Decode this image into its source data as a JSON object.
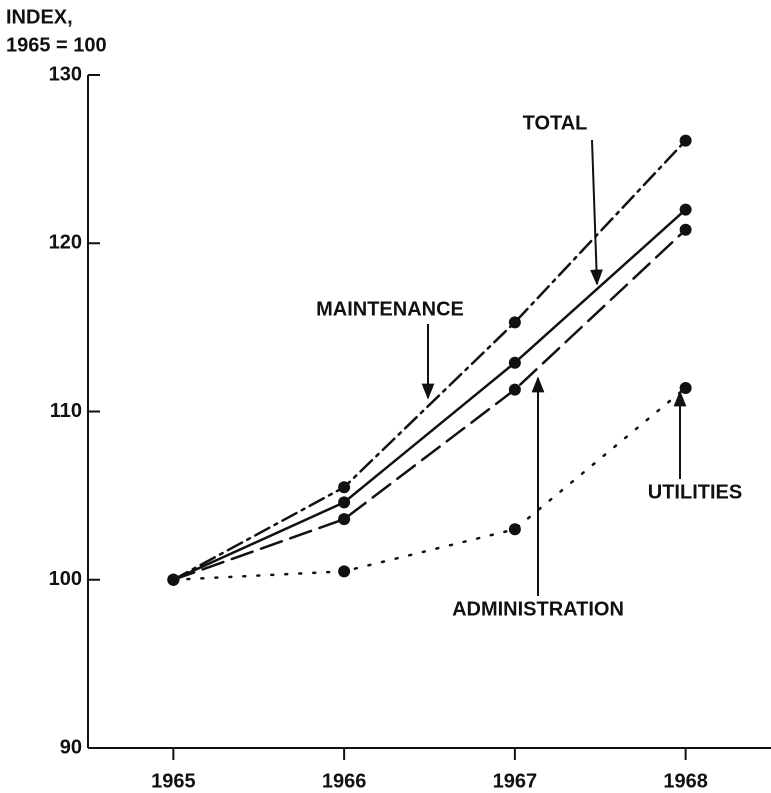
{
  "chart_data": {
    "type": "line",
    "ylabel": [
      "INDEX,",
      "1965 = 100"
    ],
    "x": [
      1965,
      1966,
      1967,
      1968
    ],
    "series": [
      {
        "name": "MAINTENANCE",
        "color": "#111111",
        "style": "dashdot",
        "values": [
          100,
          105.5,
          115.3,
          126.1
        ]
      },
      {
        "name": "TOTAL",
        "color": "#111111",
        "style": "solid",
        "values": [
          100,
          104.6,
          112.9,
          122.0
        ]
      },
      {
        "name": "ADMINISTRATION",
        "color": "#111111",
        "style": "dashed",
        "values": [
          100,
          103.6,
          111.3,
          120.8
        ]
      },
      {
        "name": "UTILITIES",
        "color": "#111111",
        "style": "dotted",
        "values": [
          100,
          100.5,
          103.0,
          111.4
        ]
      }
    ],
    "xlim": [
      1964.5,
      1968.5
    ],
    "xticks": [
      1965,
      1966,
      1967,
      1968
    ],
    "ylim": [
      90,
      130
    ],
    "yticks": [
      90,
      100,
      110,
      120,
      130
    ],
    "grid": false
  }
}
